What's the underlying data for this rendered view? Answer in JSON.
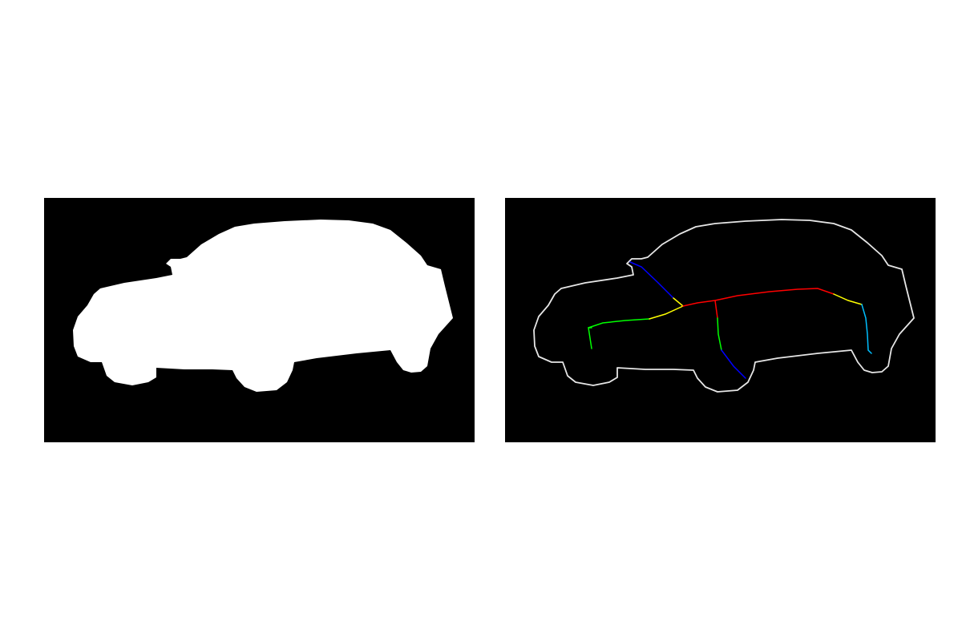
{
  "figure": {
    "background": "#ffffff",
    "panels": [
      {
        "id": "silhouette-mask",
        "kind": "binary-mask",
        "subject": "car",
        "background": "#000000",
        "fill": "#ffffff"
      },
      {
        "id": "contour-skeleton",
        "kind": "contour-with-skeleton",
        "subject": "car",
        "background": "#000000",
        "contour_color": "#e6e6e6",
        "skeleton_colors": [
          "#0000ff",
          "#00ff00",
          "#ffff00",
          "#ff0000",
          "#00bfff"
        ]
      }
    ]
  }
}
